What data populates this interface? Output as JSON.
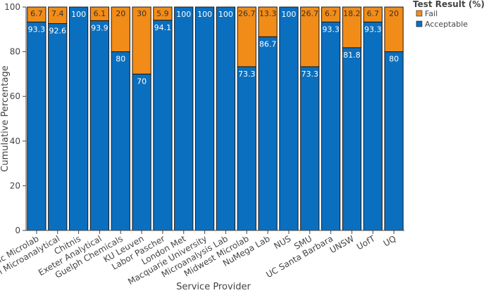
{
  "chart_data": {
    "type": "bar",
    "stacked": true,
    "title": "",
    "xlabel": "Service Provider",
    "ylabel": "Cumulative Percentage",
    "ylim": [
      0,
      100
    ],
    "yticks": [
      0,
      20,
      40,
      60,
      80,
      100
    ],
    "grid": false,
    "legend": {
      "title": "Test Result (%)",
      "placement": "top-right"
    },
    "categories": [
      "Atlantic Microlab",
      "Campbell Microanalytical",
      "Chitnis",
      "Exeter Analytical",
      "Guelph Chemicals",
      "KU Leuven",
      "Labor Pascher",
      "London Met",
      "Macquarie University",
      "Microanalysis Lab",
      "Midwest Microlab",
      "NuMega Lab",
      "NUS",
      "SMU",
      "UC Santa Barbara",
      "UNSW",
      "UofT",
      "UQ"
    ],
    "series": [
      {
        "name": "Acceptable",
        "color": "#0b6fbf",
        "values": [
          93.3,
          92.6,
          100,
          93.9,
          80,
          70,
          94.1,
          100,
          100,
          100,
          73.3,
          86.7,
          100,
          73.3,
          93.3,
          81.8,
          93.3,
          80
        ]
      },
      {
        "name": "Fail",
        "color": "#f28c18",
        "values": [
          6.7,
          7.4,
          null,
          6.1,
          20,
          30,
          5.9,
          null,
          null,
          null,
          26.7,
          13.3,
          null,
          26.7,
          6.7,
          18.2,
          6.7,
          20
        ]
      }
    ]
  }
}
